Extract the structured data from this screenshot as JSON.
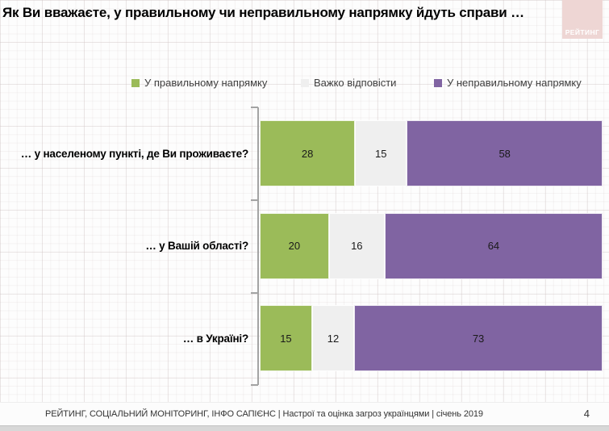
{
  "slide": {
    "title": "Як Ви вважаєте, у правильному чи неправильному напрямку йдуть справи …",
    "logo_text": "РЕЙТИНГ",
    "logo_bg": "#eed6d4",
    "footer": "РЕЙТИНГ, СОЦІАЛЬНИЙ МОНІТОРИНГ, ІНФО САПІЄНС | Настрої та оцінка загроз українцями | січень 2019",
    "page_number": "4"
  },
  "chart_data": {
    "type": "bar",
    "stacked": true,
    "orientation": "horizontal",
    "normalized_to_100": true,
    "title": "Як Ви вважаєте, у правильному чи неправильному напрямку йдуть справи …",
    "legend_position": "top",
    "xlim": [
      0,
      100
    ],
    "grid": false,
    "categories": [
      "… у населеному пункті, де Ви проживаєте?",
      "… у Вашій області?",
      "… в Україні?"
    ],
    "series": [
      {
        "name": "У правильному напрямку",
        "color": "#9bbb59",
        "values": [
          28,
          20,
          15
        ]
      },
      {
        "name": "Важко відповісти",
        "color": "#efefef",
        "values": [
          15,
          16,
          12
        ]
      },
      {
        "name": "У неправильному напрямку",
        "color": "#8064a2",
        "values": [
          58,
          64,
          73
        ]
      }
    ]
  }
}
